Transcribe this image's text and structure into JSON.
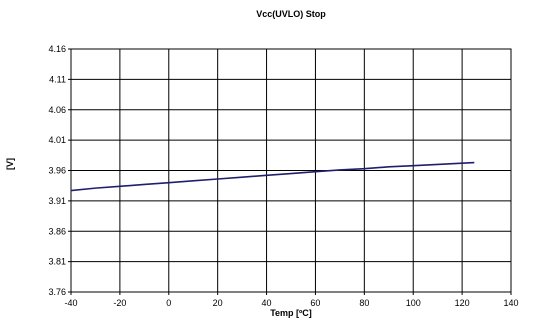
{
  "chart_data": {
    "type": "line",
    "title": "Vcc(UVLO) Stop",
    "xlabel": "Temp [ºC]",
    "ylabel": "[V]",
    "xlim": [
      -40,
      140
    ],
    "ylim": [
      3.76,
      4.16
    ],
    "xticks": [
      "-40",
      "-20",
      "0",
      "20",
      "40",
      "60",
      "80",
      "100",
      "120",
      "140"
    ],
    "yticks": [
      "3.76",
      "3.81",
      "3.86",
      "3.91",
      "3.96",
      "4.01",
      "4.06",
      "4.11",
      "4.16"
    ],
    "grid": true,
    "legend": "none",
    "series": [
      {
        "color": "#1f1f6e",
        "x": [
          -40,
          -30,
          -20,
          -10,
          0,
          10,
          20,
          30,
          40,
          50,
          60,
          70,
          80,
          90,
          100,
          110,
          125
        ],
        "y": [
          3.927,
          3.931,
          3.934,
          3.937,
          3.94,
          3.943,
          3.946,
          3.949,
          3.952,
          3.955,
          3.958,
          3.961,
          3.963,
          3.966,
          3.968,
          3.97,
          3.973
        ]
      }
    ]
  }
}
